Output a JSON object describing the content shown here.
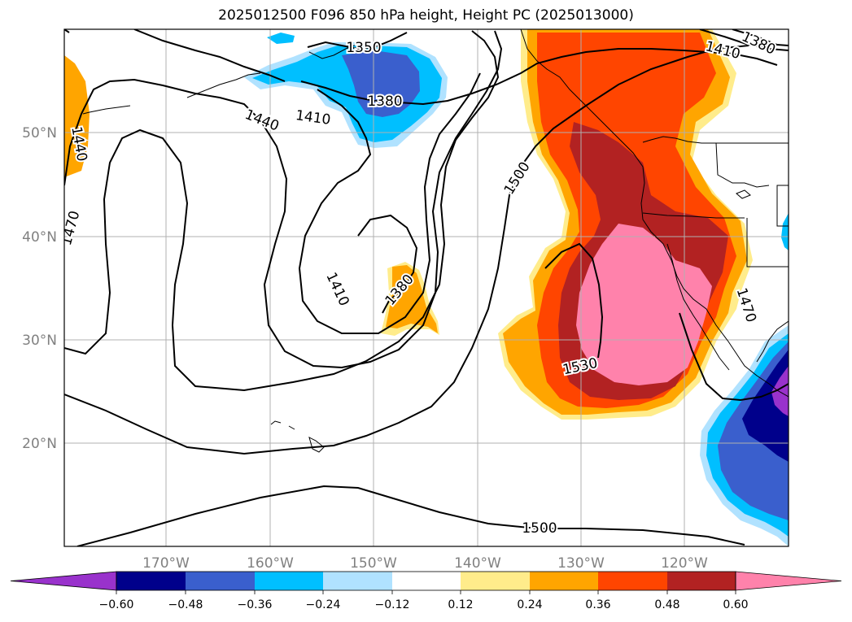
{
  "title": "2025012500 F096 850 hPa height, Height PC (2025013000)",
  "map": {
    "lon_labels": [
      "170°W",
      "160°W",
      "150°W",
      "140°W",
      "130°W",
      "120°W"
    ],
    "lat_labels": [
      "50°N",
      "40°N",
      "30°N",
      "20°N"
    ],
    "contour_labels": [
      "1350",
      "1380",
      "1410",
      "1440",
      "1440",
      "1470",
      "1410",
      "1380",
      "1500",
      "1530",
      "1470",
      "1500",
      "1410",
      "1380"
    ]
  },
  "colorbar": {
    "labels": [
      "−0.60",
      "−0.48",
      "−0.36",
      "−0.24",
      "−0.12",
      "0.12",
      "0.24",
      "0.36",
      "0.48",
      "0.60"
    ],
    "colors": [
      "#9932cc",
      "#00008b",
      "#3a5fcd",
      "#00bfff",
      "#b0e2ff",
      "#ffffff",
      "#ffec8b",
      "#ffa500",
      "#ff4500",
      "#b22222",
      "#ff82ab"
    ]
  }
}
